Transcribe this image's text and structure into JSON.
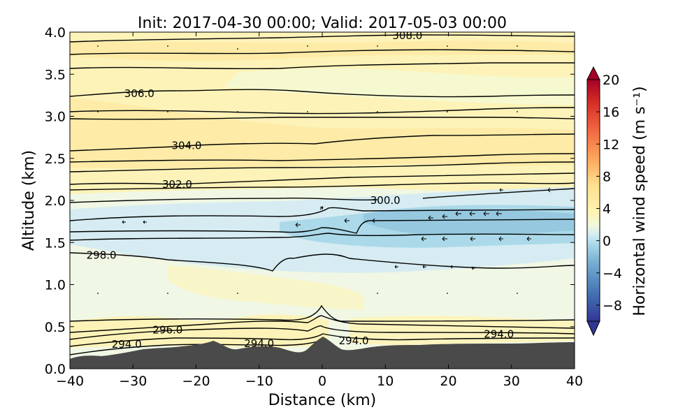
{
  "chart_data": {
    "type": "contour",
    "title": "Init: 2017-04-30 00:00; Valid: 2017-05-03 00:00",
    "xlabel": "Distance (km)",
    "ylabel": "Altitude (km)",
    "xlim": [
      -40,
      40
    ],
    "ylim": [
      0.0,
      4.0
    ],
    "x_ticks": [
      "−40",
      "−30",
      "−20",
      "−10",
      "0",
      "10",
      "20",
      "30",
      "40"
    ],
    "y_ticks": [
      "0.0",
      "0.5",
      "1.0",
      "1.5",
      "2.0",
      "2.5",
      "3.0",
      "3.5",
      "4.0"
    ],
    "colorbar": {
      "label": "Horizontal wind speed (m s⁻¹)",
      "range": [
        -10,
        20
      ],
      "ticks": [
        "−8",
        "−4",
        "0",
        "4",
        "8",
        "12",
        "16",
        "20"
      ],
      "colormap": "RdYlBu_r"
    },
    "contour_labels": [
      {
        "text": "308.0",
        "x": 13.5,
        "y": 3.96
      },
      {
        "text": "306.0",
        "x": -29.0,
        "y": 3.27
      },
      {
        "text": "304.0",
        "x": -21.5,
        "y": 2.65
      },
      {
        "text": "302.0",
        "x": -23.0,
        "y": 2.19
      },
      {
        "text": "300.0",
        "x": 10.0,
        "y": 2.0
      },
      {
        "text": "298.0",
        "x": -35.0,
        "y": 1.35
      },
      {
        "text": "296.0",
        "x": -24.5,
        "y": 0.46
      },
      {
        "text": "294.0",
        "x": -31.0,
        "y": 0.29
      },
      {
        "text": "294.0",
        "x": -10.0,
        "y": 0.3
      },
      {
        "text": "294.0",
        "x": 5.0,
        "y": 0.33
      },
      {
        "text": "294.0",
        "x": 28.0,
        "y": 0.41
      }
    ]
  }
}
